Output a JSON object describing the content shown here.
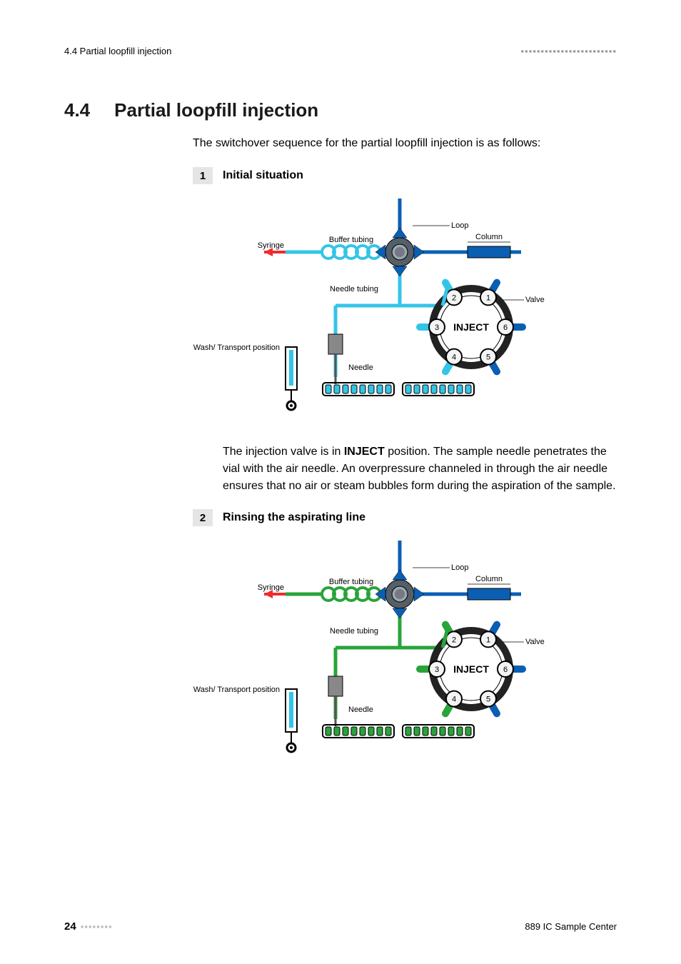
{
  "header": {
    "left": "4.4 Partial loopfill injection",
    "dashes": "▪▪▪▪▪▪▪▪▪▪▪▪▪▪▪▪▪▪▪▪▪▪▪▪"
  },
  "section": {
    "number": "4.4",
    "title": "Partial loopfill injection",
    "intro": "The switchover sequence for the partial loopfill injection is as follows:"
  },
  "steps": [
    {
      "num": "1",
      "title": "Initial situation",
      "body_pre": "The injection valve is in ",
      "body_bold": "INJECT",
      "body_post": " position. The sample needle penetrates the vial with the air needle. An overpressure channeled in through the air needle ensures that no air or steam bubbles form during the aspiration of the sample.",
      "diagram": {
        "labels": {
          "loop": "Loop",
          "column": "Column",
          "buffer": "Buffer tubing",
          "syringe": "Syringe",
          "needle_tubing": "Needle tubing",
          "valve": "Valve",
          "inject": "INJECT",
          "wash": "Wash/ Transport position",
          "needle": "Needle"
        },
        "colors": {
          "background": "#ffffff",
          "flow_left": "#33c5e8",
          "flow_right": "#0b5fb3",
          "valve_body": "#555f6a",
          "valve_ring": "#222222",
          "port_fill": "#f4f4f4",
          "column": "#0b5fb3",
          "rack": "#33c5e8",
          "arrow": "#ef2b2d",
          "text": "#000000",
          "needle_body": "#888888"
        },
        "valve_ports": [
          "1",
          "2",
          "3",
          "4",
          "5",
          "6"
        ]
      }
    },
    {
      "num": "2",
      "title": "Rinsing the aspirating line",
      "diagram": {
        "labels": {
          "loop": "Loop",
          "column": "Column",
          "buffer": "Buffer tubing",
          "syringe": "Syringe",
          "needle_tubing": "Needle tubing",
          "valve": "Valve",
          "inject": "INJECT",
          "wash": "Wash/ Transport position",
          "needle": "Needle"
        },
        "colors": {
          "background": "#ffffff",
          "flow_left": "#29a43a",
          "flow_right": "#0b5fb3",
          "valve_body": "#555f6a",
          "valve_ring": "#222222",
          "port_fill": "#f4f4f4",
          "column": "#0b5fb3",
          "rack": "#29a43a",
          "arrow": "#ef2b2d",
          "text": "#000000",
          "needle_body": "#888888",
          "wash_accent": "#33c5e8"
        },
        "valve_ports": [
          "1",
          "2",
          "3",
          "4",
          "5",
          "6"
        ]
      }
    }
  ],
  "footer": {
    "page": "24",
    "dashes": "▪▪▪▪▪▪▪▪",
    "right": "889 IC Sample Center"
  }
}
